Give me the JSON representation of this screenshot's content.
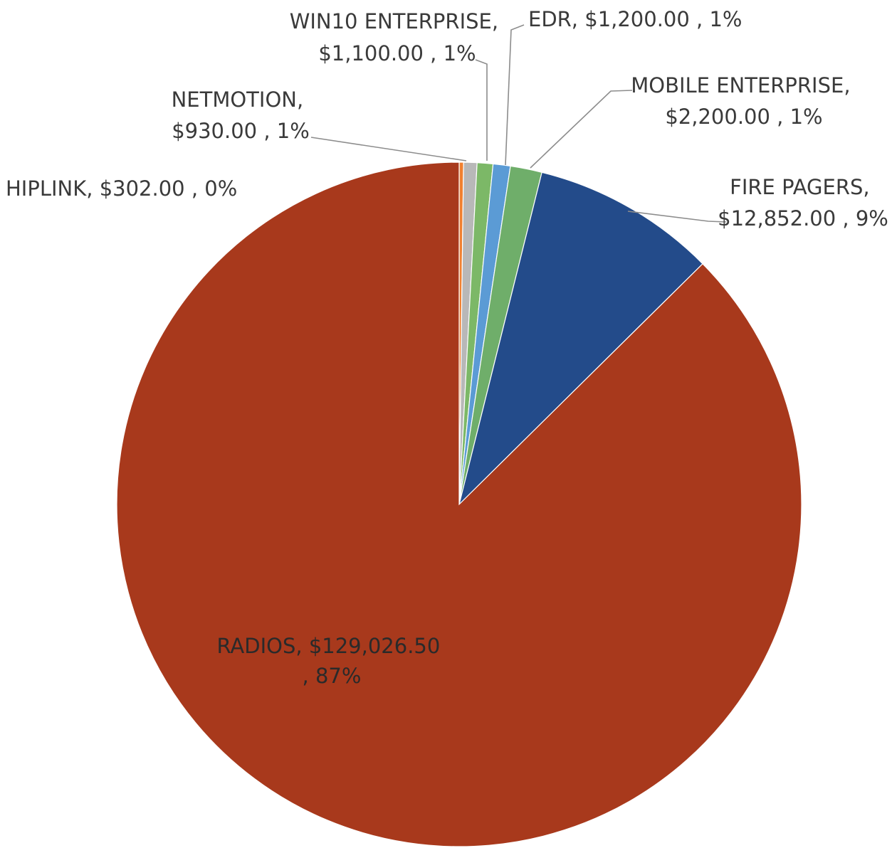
{
  "chart_data": {
    "type": "pie",
    "start_angle_deg": 0,
    "direction": "clockwise",
    "slices": [
      {
        "name": "HIPLINK",
        "value": 302.0,
        "value_label": "$302.00",
        "percent_label": "0%",
        "color": "#f08030"
      },
      {
        "name": "NETMOTION",
        "value": 930.0,
        "value_label": "$930.00",
        "percent_label": "1%",
        "color": "#b8b8b8"
      },
      {
        "name": "WIN10 ENTERPRISE",
        "value": 1100.0,
        "value_label": "$1,100.00",
        "percent_label": "1%",
        "color": "#7cb867"
      },
      {
        "name": "EDR",
        "value": 1200.0,
        "value_label": "$1,200.00",
        "percent_label": "1%",
        "color": "#5b9bd5"
      },
      {
        "name": "MOBILE ENTERPRISE",
        "value": 2200.0,
        "value_label": "$2,200.00",
        "percent_label": "1%",
        "color": "#6fae6a"
      },
      {
        "name": "FIRE PAGERS",
        "value": 12852.0,
        "value_label": "$12,852.00",
        "percent_label": "9%",
        "color": "#234b8a"
      },
      {
        "name": "RADIOS",
        "value": 129026.5,
        "value_label": "$129,026.50",
        "percent_label": "87%",
        "color": "#a8391c"
      }
    ],
    "data_labels": [
      {
        "lines": [
          "HIPLINK,  $302.00 , 0%"
        ]
      },
      {
        "lines": [
          "NETMOTION,",
          "$930.00 , 1%"
        ]
      },
      {
        "lines": [
          "WIN10 ENTERPRISE,",
          "$1,100.00 , 1%"
        ]
      },
      {
        "lines": [
          "EDR,  $1,200.00 , 1%"
        ]
      },
      {
        "lines": [
          "MOBILE ENTERPRISE,",
          "$2,200.00 , 1%"
        ]
      },
      {
        "lines": [
          "FIRE PAGERS,",
          "$12,852.00 , 9%"
        ]
      },
      {
        "lines": [
          "RADIOS,  $129,026.50",
          ", 87%"
        ]
      }
    ]
  }
}
